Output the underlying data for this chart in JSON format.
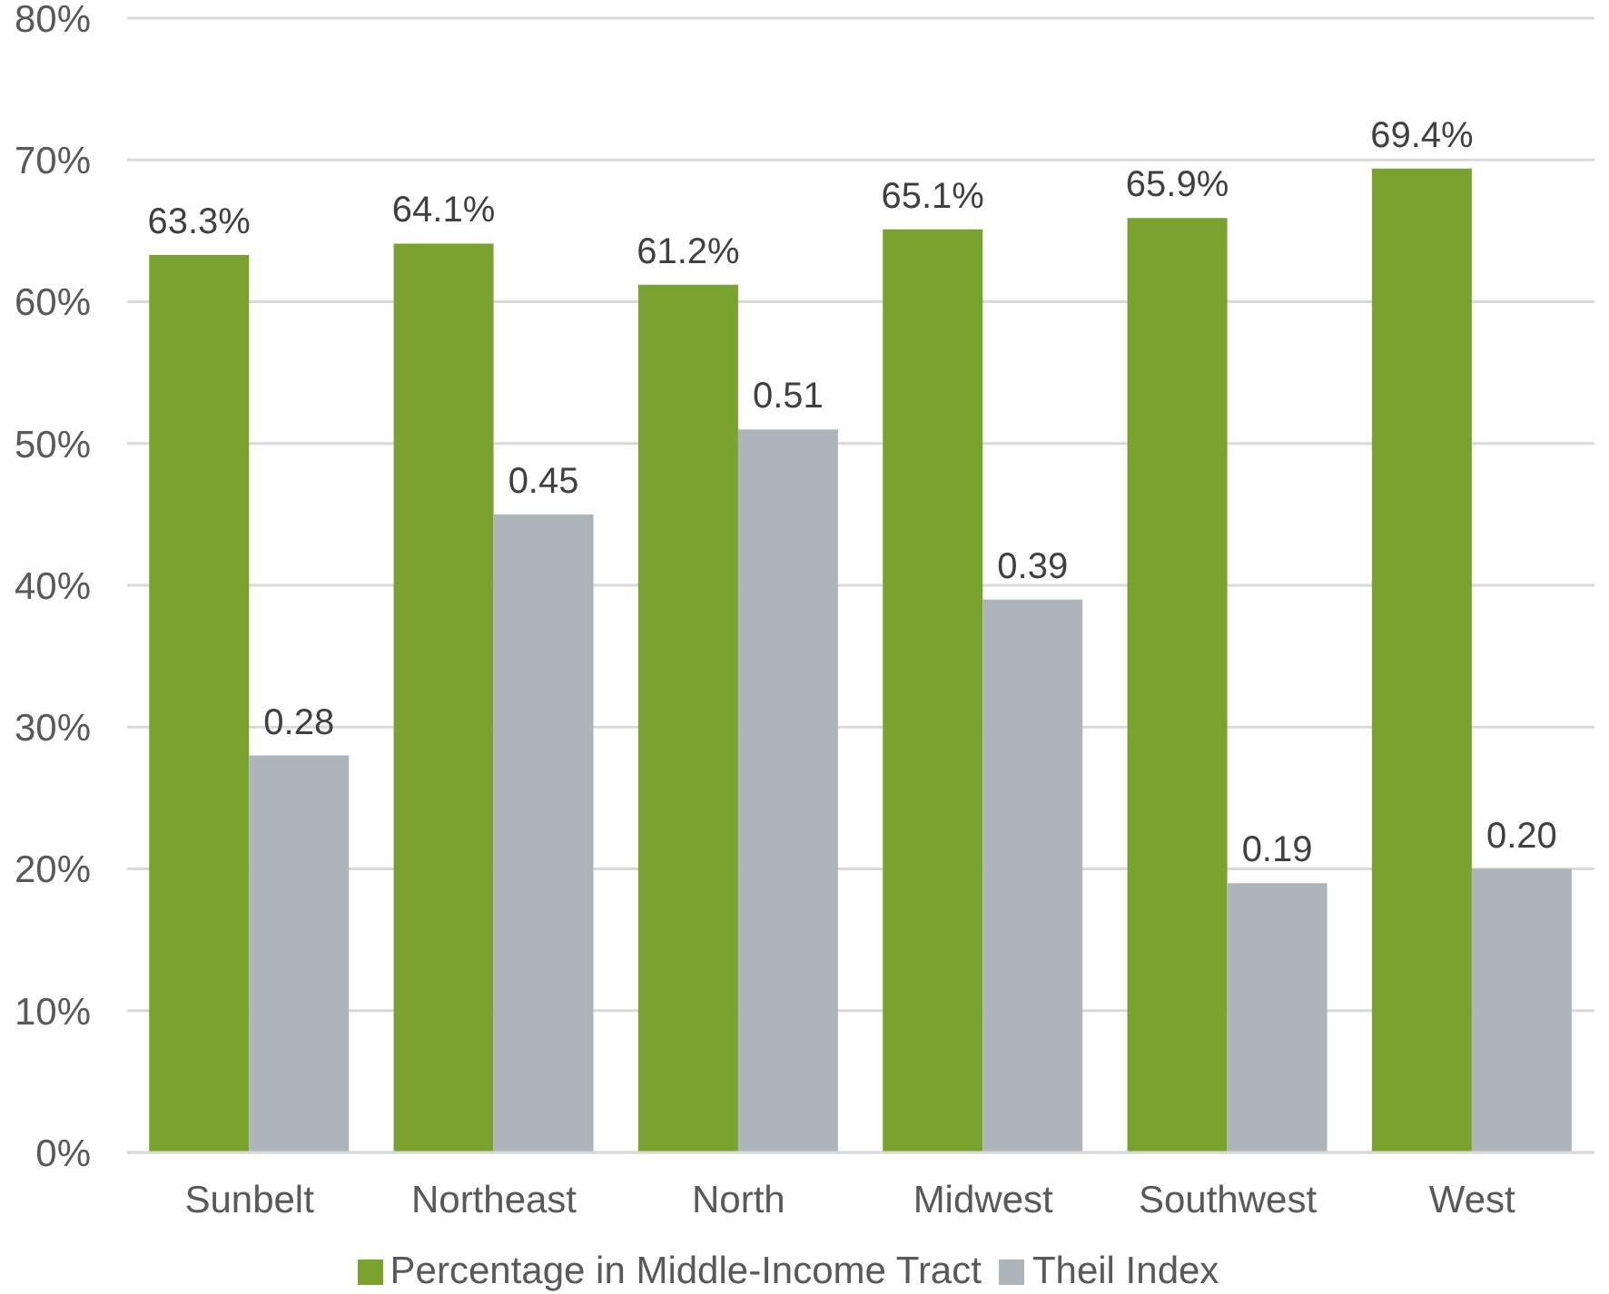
{
  "chart_data": {
    "type": "bar",
    "categories": [
      "Sunbelt",
      "Northeast",
      "North",
      "Midwest",
      "Southwest",
      "West"
    ],
    "series": [
      {
        "name": "Percentage in Middle-Income Tract",
        "color": "#7aa22f",
        "values": [
          0.633,
          0.641,
          0.612,
          0.651,
          0.659,
          0.694
        ],
        "value_labels": [
          "63.3%",
          "64.1%",
          "61.2%",
          "65.1%",
          "65.9%",
          "69.4%"
        ]
      },
      {
        "name": "Theil Index",
        "color": "#adb5bb",
        "values": [
          0.28,
          0.45,
          0.51,
          0.39,
          0.19,
          0.2
        ],
        "value_labels": [
          "0.28",
          "0.45",
          "0.51",
          "0.39",
          "0.19",
          "0.20"
        ]
      }
    ],
    "ylim": [
      0,
      0.8
    ],
    "yticks": [
      {
        "value": 0,
        "label": "0%"
      },
      {
        "value": 0.1,
        "label": "10%"
      },
      {
        "value": 0.2,
        "label": "20%"
      },
      {
        "value": 0.3,
        "label": "30%"
      },
      {
        "value": 0.4,
        "label": "40%"
      },
      {
        "value": 0.5,
        "label": "50%"
      },
      {
        "value": 0.6,
        "label": "60%"
      },
      {
        "value": 0.7,
        "label": "70%"
      },
      {
        "value": 0.8,
        "label": "80%"
      }
    ],
    "grid": "y",
    "legend": "bottom"
  }
}
